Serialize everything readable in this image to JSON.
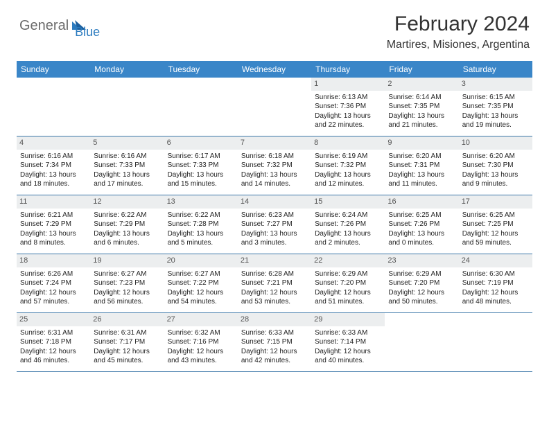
{
  "logo": {
    "part1": "General",
    "part2": "Blue"
  },
  "title": "February 2024",
  "location": "Martires, Misiones, Argentina",
  "colors": {
    "header_bg": "#3a86c8",
    "border": "#3a76a8",
    "daynum_bg": "#eceeef",
    "logo_gray": "#6b6b6b",
    "logo_blue": "#2b7bbf"
  },
  "weekdays": [
    "Sunday",
    "Monday",
    "Tuesday",
    "Wednesday",
    "Thursday",
    "Friday",
    "Saturday"
  ],
  "weeks": [
    [
      {
        "n": "",
        "sr": "",
        "ss": "",
        "d1": "",
        "d2": ""
      },
      {
        "n": "",
        "sr": "",
        "ss": "",
        "d1": "",
        "d2": ""
      },
      {
        "n": "",
        "sr": "",
        "ss": "",
        "d1": "",
        "d2": ""
      },
      {
        "n": "",
        "sr": "",
        "ss": "",
        "d1": "",
        "d2": ""
      },
      {
        "n": "1",
        "sr": "Sunrise: 6:13 AM",
        "ss": "Sunset: 7:36 PM",
        "d1": "Daylight: 13 hours",
        "d2": "and 22 minutes."
      },
      {
        "n": "2",
        "sr": "Sunrise: 6:14 AM",
        "ss": "Sunset: 7:35 PM",
        "d1": "Daylight: 13 hours",
        "d2": "and 21 minutes."
      },
      {
        "n": "3",
        "sr": "Sunrise: 6:15 AM",
        "ss": "Sunset: 7:35 PM",
        "d1": "Daylight: 13 hours",
        "d2": "and 19 minutes."
      }
    ],
    [
      {
        "n": "4",
        "sr": "Sunrise: 6:16 AM",
        "ss": "Sunset: 7:34 PM",
        "d1": "Daylight: 13 hours",
        "d2": "and 18 minutes."
      },
      {
        "n": "5",
        "sr": "Sunrise: 6:16 AM",
        "ss": "Sunset: 7:33 PM",
        "d1": "Daylight: 13 hours",
        "d2": "and 17 minutes."
      },
      {
        "n": "6",
        "sr": "Sunrise: 6:17 AM",
        "ss": "Sunset: 7:33 PM",
        "d1": "Daylight: 13 hours",
        "d2": "and 15 minutes."
      },
      {
        "n": "7",
        "sr": "Sunrise: 6:18 AM",
        "ss": "Sunset: 7:32 PM",
        "d1": "Daylight: 13 hours",
        "d2": "and 14 minutes."
      },
      {
        "n": "8",
        "sr": "Sunrise: 6:19 AM",
        "ss": "Sunset: 7:32 PM",
        "d1": "Daylight: 13 hours",
        "d2": "and 12 minutes."
      },
      {
        "n": "9",
        "sr": "Sunrise: 6:20 AM",
        "ss": "Sunset: 7:31 PM",
        "d1": "Daylight: 13 hours",
        "d2": "and 11 minutes."
      },
      {
        "n": "10",
        "sr": "Sunrise: 6:20 AM",
        "ss": "Sunset: 7:30 PM",
        "d1": "Daylight: 13 hours",
        "d2": "and 9 minutes."
      }
    ],
    [
      {
        "n": "11",
        "sr": "Sunrise: 6:21 AM",
        "ss": "Sunset: 7:29 PM",
        "d1": "Daylight: 13 hours",
        "d2": "and 8 minutes."
      },
      {
        "n": "12",
        "sr": "Sunrise: 6:22 AM",
        "ss": "Sunset: 7:29 PM",
        "d1": "Daylight: 13 hours",
        "d2": "and 6 minutes."
      },
      {
        "n": "13",
        "sr": "Sunrise: 6:22 AM",
        "ss": "Sunset: 7:28 PM",
        "d1": "Daylight: 13 hours",
        "d2": "and 5 minutes."
      },
      {
        "n": "14",
        "sr": "Sunrise: 6:23 AM",
        "ss": "Sunset: 7:27 PM",
        "d1": "Daylight: 13 hours",
        "d2": "and 3 minutes."
      },
      {
        "n": "15",
        "sr": "Sunrise: 6:24 AM",
        "ss": "Sunset: 7:26 PM",
        "d1": "Daylight: 13 hours",
        "d2": "and 2 minutes."
      },
      {
        "n": "16",
        "sr": "Sunrise: 6:25 AM",
        "ss": "Sunset: 7:26 PM",
        "d1": "Daylight: 13 hours",
        "d2": "and 0 minutes."
      },
      {
        "n": "17",
        "sr": "Sunrise: 6:25 AM",
        "ss": "Sunset: 7:25 PM",
        "d1": "Daylight: 12 hours",
        "d2": "and 59 minutes."
      }
    ],
    [
      {
        "n": "18",
        "sr": "Sunrise: 6:26 AM",
        "ss": "Sunset: 7:24 PM",
        "d1": "Daylight: 12 hours",
        "d2": "and 57 minutes."
      },
      {
        "n": "19",
        "sr": "Sunrise: 6:27 AM",
        "ss": "Sunset: 7:23 PM",
        "d1": "Daylight: 12 hours",
        "d2": "and 56 minutes."
      },
      {
        "n": "20",
        "sr": "Sunrise: 6:27 AM",
        "ss": "Sunset: 7:22 PM",
        "d1": "Daylight: 12 hours",
        "d2": "and 54 minutes."
      },
      {
        "n": "21",
        "sr": "Sunrise: 6:28 AM",
        "ss": "Sunset: 7:21 PM",
        "d1": "Daylight: 12 hours",
        "d2": "and 53 minutes."
      },
      {
        "n": "22",
        "sr": "Sunrise: 6:29 AM",
        "ss": "Sunset: 7:20 PM",
        "d1": "Daylight: 12 hours",
        "d2": "and 51 minutes."
      },
      {
        "n": "23",
        "sr": "Sunrise: 6:29 AM",
        "ss": "Sunset: 7:20 PM",
        "d1": "Daylight: 12 hours",
        "d2": "and 50 minutes."
      },
      {
        "n": "24",
        "sr": "Sunrise: 6:30 AM",
        "ss": "Sunset: 7:19 PM",
        "d1": "Daylight: 12 hours",
        "d2": "and 48 minutes."
      }
    ],
    [
      {
        "n": "25",
        "sr": "Sunrise: 6:31 AM",
        "ss": "Sunset: 7:18 PM",
        "d1": "Daylight: 12 hours",
        "d2": "and 46 minutes."
      },
      {
        "n": "26",
        "sr": "Sunrise: 6:31 AM",
        "ss": "Sunset: 7:17 PM",
        "d1": "Daylight: 12 hours",
        "d2": "and 45 minutes."
      },
      {
        "n": "27",
        "sr": "Sunrise: 6:32 AM",
        "ss": "Sunset: 7:16 PM",
        "d1": "Daylight: 12 hours",
        "d2": "and 43 minutes."
      },
      {
        "n": "28",
        "sr": "Sunrise: 6:33 AM",
        "ss": "Sunset: 7:15 PM",
        "d1": "Daylight: 12 hours",
        "d2": "and 42 minutes."
      },
      {
        "n": "29",
        "sr": "Sunrise: 6:33 AM",
        "ss": "Sunset: 7:14 PM",
        "d1": "Daylight: 12 hours",
        "d2": "and 40 minutes."
      },
      {
        "n": "",
        "sr": "",
        "ss": "",
        "d1": "",
        "d2": ""
      },
      {
        "n": "",
        "sr": "",
        "ss": "",
        "d1": "",
        "d2": ""
      }
    ]
  ]
}
